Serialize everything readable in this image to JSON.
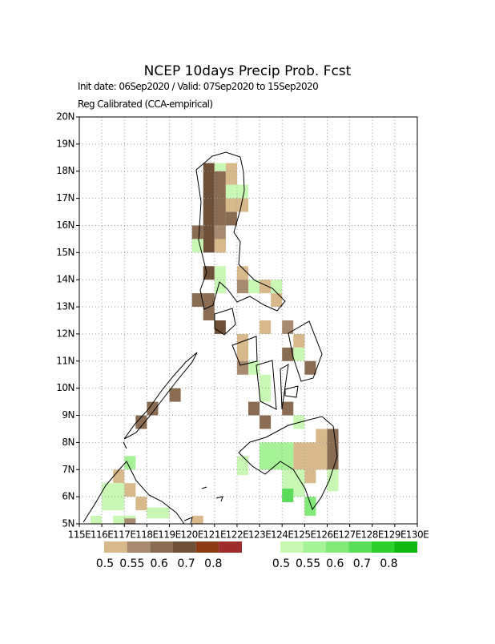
{
  "header": {
    "title": "NCEP 10days Precip Prob. Fcst",
    "subtitle": "Init date: 06Sep2020 / Valid: 07Sep2020 to 15Sep2020",
    "method": "Reg Calibrated (CCA-empirical)"
  },
  "map": {
    "lat_labels": [
      "5N",
      "6N",
      "7N",
      "8N",
      "9N",
      "10N",
      "11N",
      "12N",
      "13N",
      "14N",
      "15N",
      "16N",
      "17N",
      "18N",
      "19N",
      "20N"
    ],
    "lon_labels": [
      "115E",
      "116E",
      "117E",
      "118E",
      "119E",
      "120E",
      "121E",
      "122E",
      "123E",
      "124E",
      "125E",
      "126E",
      "127E",
      "128E",
      "129E",
      "130E"
    ]
  },
  "legend": {
    "dry": {
      "colors": [
        "#d7b98c",
        "#a88a70",
        "#8a6c52",
        "#6e5038",
        "#8b3c14",
        "#9e2c2c"
      ],
      "labels": [
        "0.5",
        "0.55",
        "0.6",
        "0.7",
        "0.8"
      ]
    },
    "wet": {
      "colors": [
        "#c8f8b4",
        "#a6f296",
        "#82e878",
        "#5ade5a",
        "#2ccf2c",
        "#10b810"
      ],
      "labels": [
        "0.5",
        "0.55",
        "0.6",
        "0.7",
        "0.8"
      ]
    }
  }
}
